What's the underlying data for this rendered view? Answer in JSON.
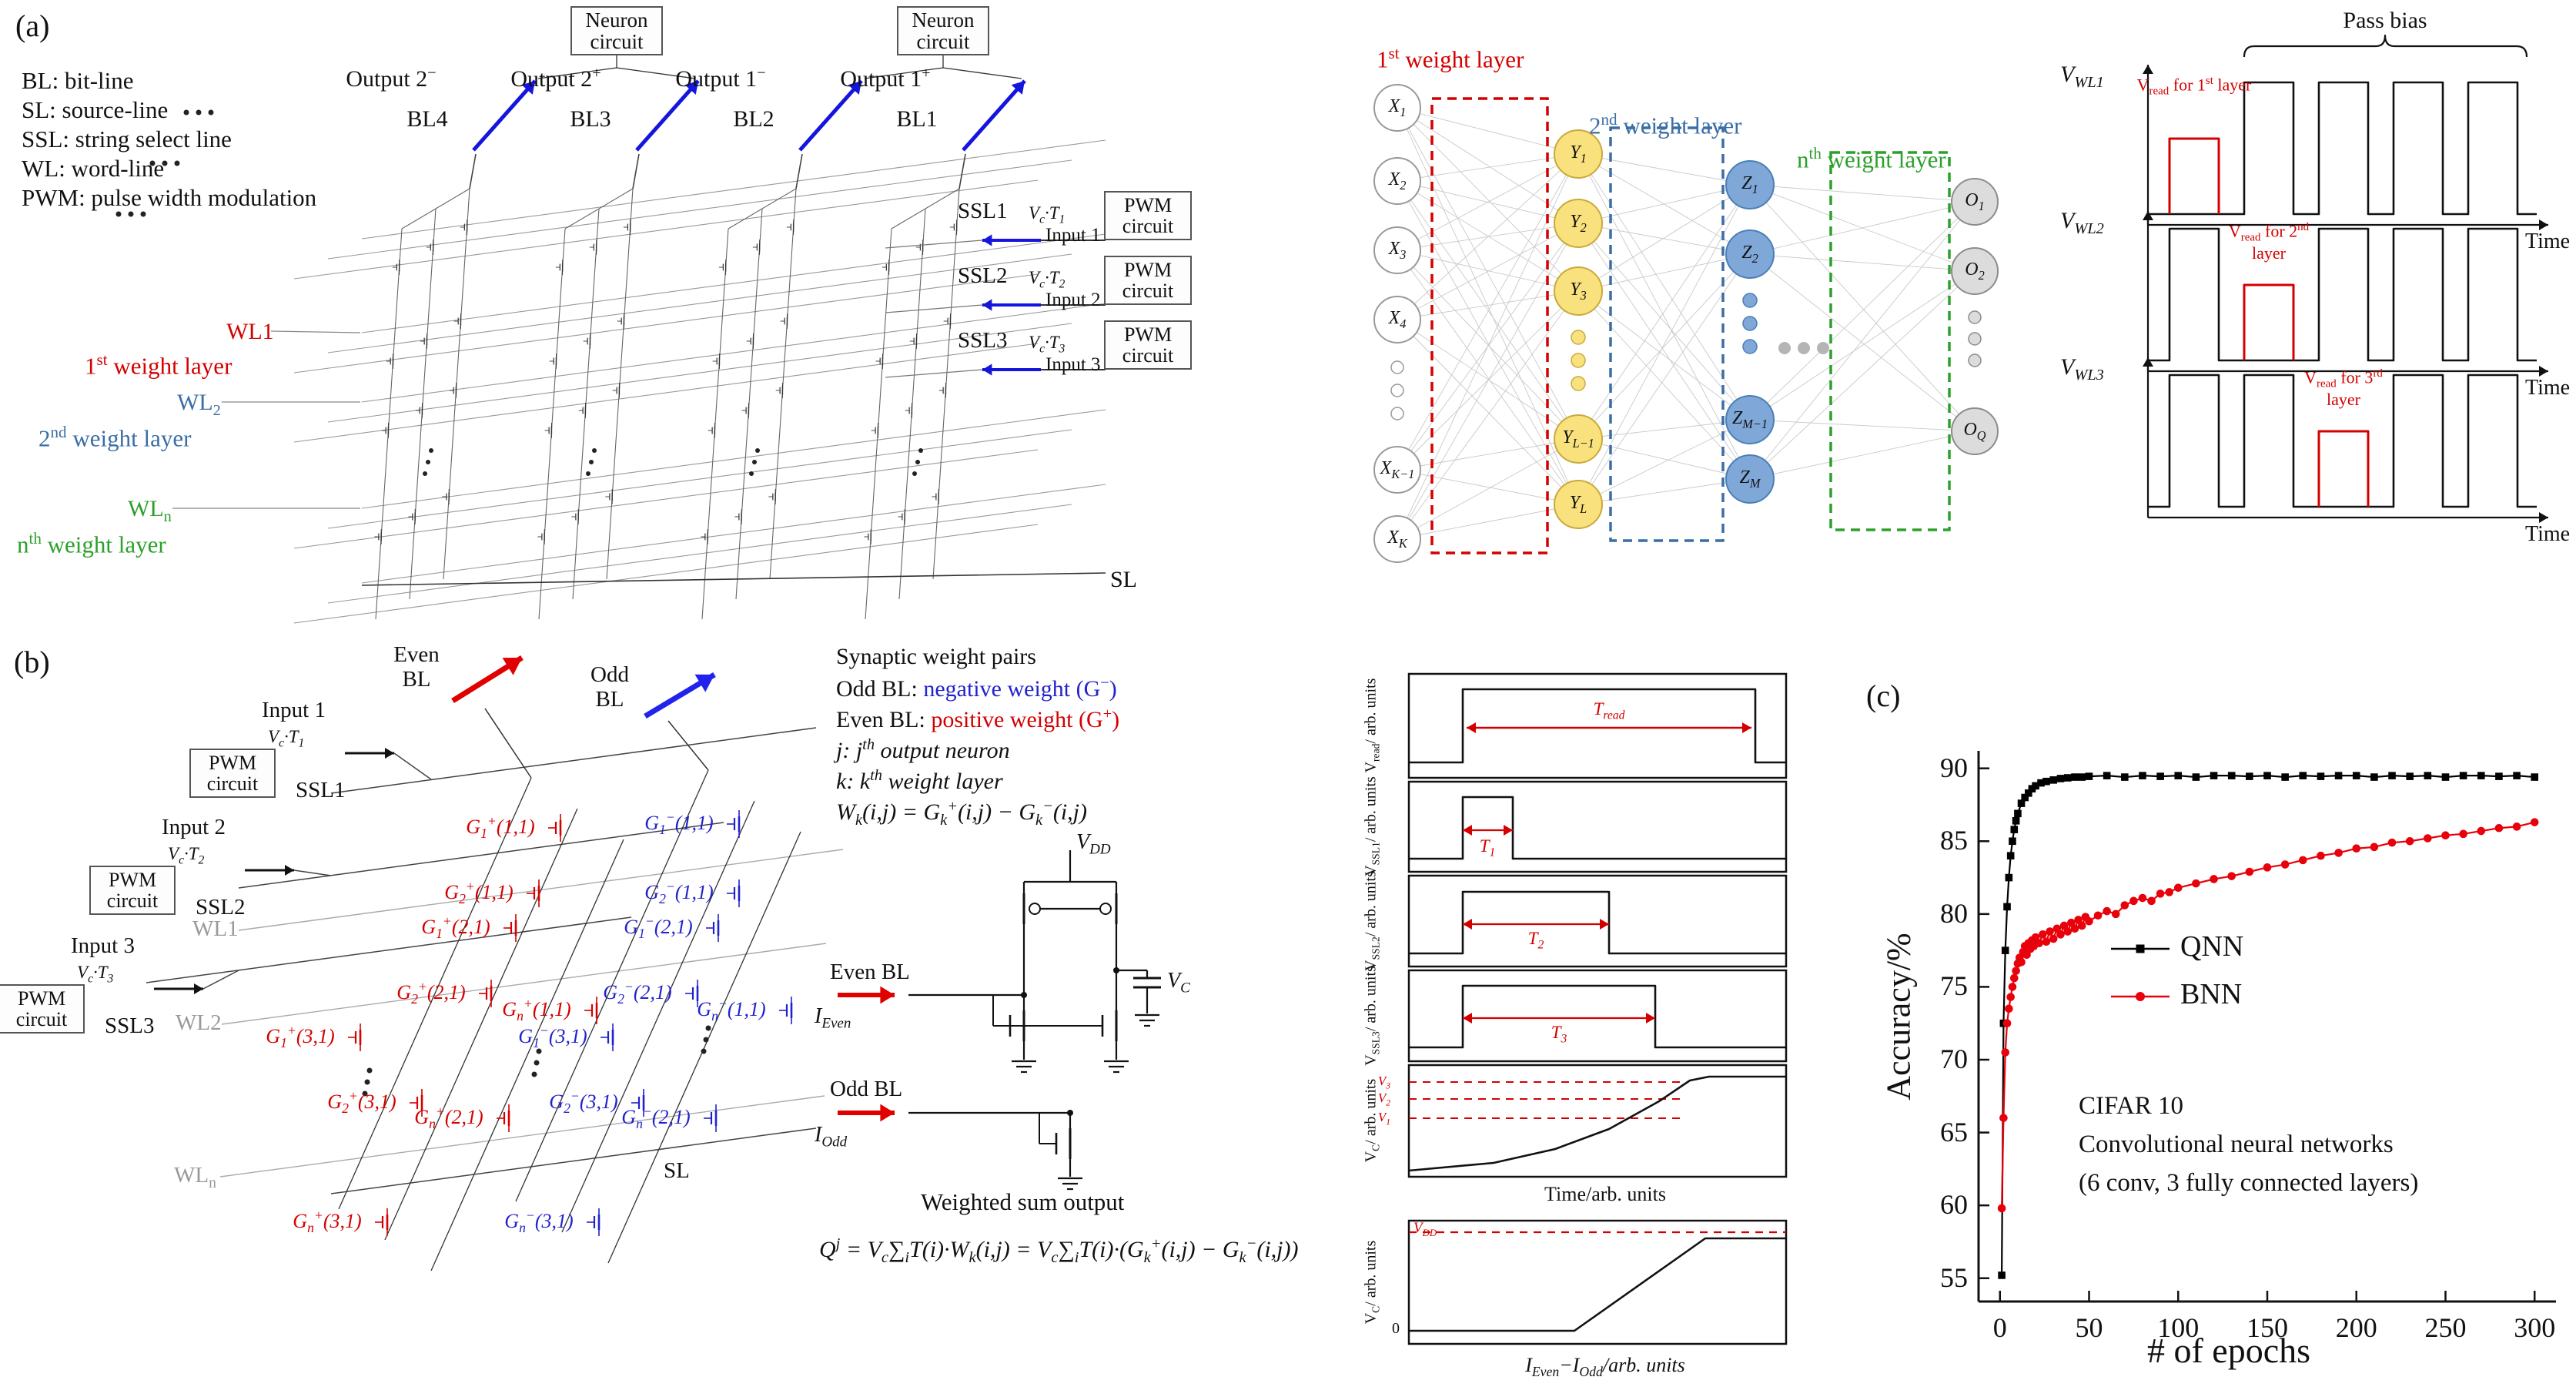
{
  "panel_a": {
    "label": "(a)",
    "legend": [
      "BL: bit-line",
      "SL: source-line",
      "SSL: string select line",
      "WL: word-line",
      "PWM: pulse width modulation"
    ],
    "neuron_circuit": "Neuron circuit",
    "outputs": [
      "Output 2^{−}",
      "Output 2^{+}",
      "Output 1^{−}",
      "Output 1^{+}"
    ],
    "bitlines": [
      "BL4",
      "BL3",
      "BL2",
      "BL1"
    ],
    "ssl_groups": [
      {
        "ssl": "SSL1",
        "v": "V_{c}·T_{1}",
        "pwm": "PWM circuit",
        "input": "Input 1"
      },
      {
        "ssl": "SSL2",
        "v": "V_{c}·T_{2}",
        "pwm": "PWM circuit",
        "input": "Input 2"
      },
      {
        "ssl": "SSL3",
        "v": "V_{c}·T_{3}",
        "pwm": "PWM circuit",
        "input": "Input 3"
      }
    ],
    "word_lines": [
      {
        "name": "WL1",
        "layer": "1^{st} weight layer",
        "color": "#d40000"
      },
      {
        "name": "WL_{2}",
        "layer": "2^{nd} weight layer",
        "color": "#3b6ea5"
      },
      {
        "name": "WL_{n}",
        "layer": "n^{th} weight layer",
        "color": "#2ca02c"
      }
    ],
    "sl": "SL",
    "network": {
      "layer_labels": [
        {
          "text": "1^{st} weight layer",
          "color": "#d40000"
        },
        {
          "text": "2^{nd} weight layer",
          "color": "#3b6ea5"
        },
        {
          "text": "n^{th} weight layer",
          "color": "#2ca02c"
        }
      ],
      "x_nodes": [
        "X_{1}",
        "X_{2}",
        "X_{3}",
        "X_{4}",
        "X_{K−1}",
        "X_{K}"
      ],
      "y_nodes": [
        "Y_{1}",
        "Y_{2}",
        "Y_{3}",
        "Y_{L−1}",
        "Y_{L}"
      ],
      "z_nodes": [
        "Z_{1}",
        "Z_{2}",
        "Z_{M−1}",
        "Z_{M}"
      ],
      "o_nodes": [
        "O_{1}",
        "O_{2}",
        "O_{Q}"
      ]
    },
    "timing": {
      "pass_bias": "Pass bias",
      "rows": [
        {
          "axis": "V_{WL1}",
          "read": "V_{read} for 1^{st} layer",
          "time": "Time"
        },
        {
          "axis": "V_{WL2}",
          "read": "V_{read} for 2^{nd} layer",
          "time": "Time"
        },
        {
          "axis": "V_{WL3}",
          "read": "V_{read} for 3^{rd} layer",
          "time": "Time"
        }
      ]
    }
  },
  "panel_b": {
    "label": "(b)",
    "even_bl": "Even BL",
    "odd_bl": "Odd BL",
    "input_groups": [
      {
        "input": "Input 1",
        "v": "V_{c}·T_{1}",
        "pwm": "PWM circuit",
        "ssl": "SSL1"
      },
      {
        "input": "Input 2",
        "v": "V_{c}·T_{2}",
        "pwm": "PWM circuit",
        "ssl": "SSL2"
      },
      {
        "input": "Input 3",
        "v": "V_{c}·T_{3}",
        "pwm": "PWM circuit",
        "ssl": "SSL3"
      }
    ],
    "wl_labels": [
      "WL1",
      "WL2",
      "WL_{n}"
    ],
    "sl": "SL",
    "positive_weights": [
      "G_{1}^{+}(1,1)",
      "G_{2}^{+}(1,1)",
      "G_{1}^{+}(2,1)",
      "G_{n}^{+}(1,1)",
      "G_{2}^{+}(2,1)",
      "G_{1}^{+}(3,1)",
      "G_{2}^{+}(3,1)",
      "G_{n}^{+}(2,1)",
      "G_{n}^{+}(3,1)"
    ],
    "negative_weights": [
      "G_{1}^{−}(1,1)",
      "G_{2}^{−}(1,1)",
      "G_{1}^{−}(2,1)",
      "G_{2}^{−}(2,1)",
      "G_{n}^{−}(1,1)",
      "G_{1}^{−}(3,1)",
      "G_{2}^{−}(3,1)",
      "G_{n}^{−}(2,1)",
      "G_{n}^{−}(3,1)"
    ],
    "notes": {
      "title": "Synaptic weight pairs",
      "odd_prefix": "Odd BL: ",
      "odd_text": "negative weight (G^{−})",
      "even_prefix": "Even BL: ",
      "even_text": "positive weight (G^{+})",
      "j_line": "j: j^{th} output neuron",
      "k_line": "k: k^{th} weight layer",
      "w_eq": "W_{k}(i,j) = G_{k}^{+}(i,j) − G_{k}^{−}(i,j)"
    },
    "circuit": {
      "vdd": "V_{DD}",
      "vc": "V_{C}",
      "even_bl": "Even BL",
      "i_even": "I_{Even}",
      "odd_bl": "Odd BL",
      "i_odd": "I_{Odd}"
    },
    "weighted_sum": {
      "title": "Weighted sum output",
      "equation": "Q^{j} = V_{c}∑_{i}T(i)·W_{k}(i,j) = V_{c}∑_{i}T(i)·(G_{k}^{+}(i,j) − G_{k}^{−}(i,j))"
    },
    "timing": {
      "rows": [
        {
          "ylabel": "V_{read}/ arb. units",
          "marker": "T_{read}"
        },
        {
          "ylabel": "V_{SSL1}/ arb. units",
          "marker": "T_{1}"
        },
        {
          "ylabel": "V_{SSL2}/ arb. units",
          "marker": "T_{2}"
        },
        {
          "ylabel": "V_{SSL3}/ arb. units",
          "marker": "T_{3}"
        },
        {
          "ylabel": "V_{C}/ arb. units",
          "levels": [
            "V_{3}",
            "V_{2}",
            "V_{1}"
          ]
        }
      ],
      "xlabel": "Time/arb. units",
      "transfer": {
        "ylabel": "V_{C}/ arb. units",
        "vdd": "V_{DD}",
        "zero": "0",
        "xlabel": "I_{Even}−I_{Odd}/arb. units"
      }
    }
  },
  "panel_c": {
    "label": "(c)"
  },
  "chart_data": {
    "type": "scatter",
    "title": "",
    "xlabel": "# of epochs",
    "ylabel": "Accuracy/%",
    "xlim": [
      -12,
      312
    ],
    "ylim": [
      53.4,
      91.2
    ],
    "xticks": [
      0,
      50,
      100,
      150,
      200,
      250,
      300
    ],
    "yticks": [
      55,
      60,
      65,
      70,
      75,
      80,
      85,
      90
    ],
    "grid": false,
    "legend_position": "center-left",
    "annotations": [
      "CIFAR 10",
      "Convolutional neural networks",
      "(6 conv, 3 fully connected layers)"
    ],
    "series": [
      {
        "name": "QNN",
        "color": "#000000",
        "marker": "square",
        "x": [
          1,
          2,
          3,
          4,
          5,
          6,
          7,
          8,
          9,
          10,
          12,
          14,
          16,
          18,
          20,
          23,
          26,
          30,
          34,
          38,
          42,
          46,
          50,
          60,
          70,
          80,
          90,
          100,
          110,
          120,
          130,
          140,
          150,
          160,
          170,
          180,
          190,
          200,
          210,
          220,
          230,
          240,
          250,
          260,
          270,
          280,
          290,
          300
        ],
        "y": [
          55.2,
          72.5,
          77.5,
          80.5,
          82.5,
          84,
          85,
          85.8,
          86.4,
          86.9,
          87.6,
          88,
          88.3,
          88.6,
          88.8,
          89,
          89.1,
          89.2,
          89.3,
          89.35,
          89.4,
          89.4,
          89.45,
          89.5,
          89.4,
          89.5,
          89.45,
          89.5,
          89.4,
          89.5,
          89.5,
          89.45,
          89.5,
          89.4,
          89.5,
          89.45,
          89.5,
          89.5,
          89.4,
          89.5,
          89.45,
          89.5,
          89.4,
          89.5,
          89.5,
          89.45,
          89.5,
          89.4
        ]
      },
      {
        "name": "BNN",
        "color": "#e8000b",
        "marker": "circle",
        "x": [
          1,
          2,
          3,
          4,
          5,
          6,
          7,
          8,
          9,
          10,
          11,
          12,
          13,
          14,
          15,
          16,
          17,
          18,
          19,
          20,
          22,
          24,
          26,
          28,
          30,
          32,
          34,
          36,
          38,
          40,
          42,
          44,
          46,
          48,
          50,
          55,
          60,
          65,
          70,
          75,
          80,
          85,
          90,
          95,
          100,
          110,
          120,
          130,
          140,
          150,
          160,
          170,
          180,
          190,
          200,
          210,
          220,
          230,
          240,
          250,
          260,
          270,
          280,
          290,
          300
        ],
        "y": [
          59.8,
          66,
          70.5,
          72.5,
          73.5,
          74.3,
          75,
          75.6,
          76.1,
          76.6,
          77,
          76.7,
          77.4,
          77.8,
          77.2,
          78,
          77.6,
          78.2,
          77.8,
          78.4,
          78,
          78.6,
          78.1,
          78.8,
          78.3,
          79,
          78.6,
          79.2,
          78.8,
          79.4,
          79,
          79.6,
          79.2,
          79.8,
          79.5,
          79.9,
          80.2,
          80,
          80.6,
          80.9,
          81.1,
          80.9,
          81.4,
          81.5,
          81.8,
          82.1,
          82.4,
          82.6,
          82.9,
          83.2,
          83.4,
          83.7,
          84,
          84.2,
          84.5,
          84.6,
          84.9,
          85,
          85.2,
          85.4,
          85.5,
          85.7,
          85.9,
          86,
          86.3
        ]
      }
    ]
  }
}
